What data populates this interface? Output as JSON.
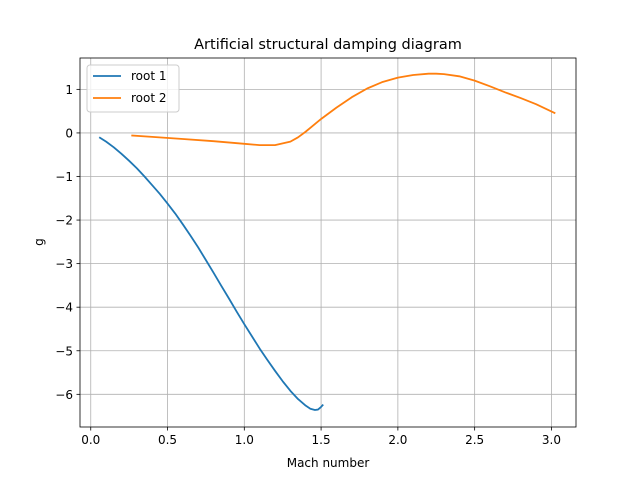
{
  "chart_data": {
    "type": "line",
    "title": "Artificial structural damping diagram",
    "xlabel": "Mach number",
    "ylabel": "g",
    "xlim": [
      -0.07,
      3.16
    ],
    "ylim": [
      -6.75,
      1.72
    ],
    "xticks": [
      0.0,
      0.5,
      1.0,
      1.5,
      2.0,
      2.5,
      3.0
    ],
    "xtick_labels": [
      "0.0",
      "0.5",
      "1.0",
      "1.5",
      "2.0",
      "2.5",
      "3.0"
    ],
    "yticks": [
      -6,
      -5,
      -4,
      -3,
      -2,
      -1,
      0,
      1
    ],
    "ytick_labels": [
      "−6",
      "−5",
      "−4",
      "−3",
      "−2",
      "−1",
      "0",
      "1"
    ],
    "grid": true,
    "legend_position": "top-left",
    "series": [
      {
        "name": "root 1",
        "color": "#1f77b4",
        "x": [
          0.06,
          0.1,
          0.15,
          0.2,
          0.25,
          0.3,
          0.35,
          0.4,
          0.45,
          0.5,
          0.55,
          0.6,
          0.65,
          0.7,
          0.75,
          0.8,
          0.85,
          0.9,
          0.95,
          1.0,
          1.05,
          1.1,
          1.15,
          1.2,
          1.25,
          1.3,
          1.35,
          1.4,
          1.43,
          1.46,
          1.48,
          1.5,
          1.51
        ],
        "y": [
          -0.11,
          -0.2,
          -0.33,
          -0.48,
          -0.64,
          -0.81,
          -1.0,
          -1.2,
          -1.4,
          -1.62,
          -1.85,
          -2.1,
          -2.36,
          -2.63,
          -2.92,
          -3.21,
          -3.51,
          -3.8,
          -4.1,
          -4.39,
          -4.67,
          -4.95,
          -5.21,
          -5.46,
          -5.7,
          -5.92,
          -6.11,
          -6.26,
          -6.33,
          -6.36,
          -6.35,
          -6.29,
          -6.25
        ]
      },
      {
        "name": "root 2",
        "color": "#ff7f0e",
        "x": [
          0.27,
          0.4,
          0.6,
          0.8,
          1.0,
          1.1,
          1.2,
          1.3,
          1.35,
          1.4,
          1.5,
          1.6,
          1.7,
          1.8,
          1.9,
          2.0,
          2.1,
          2.2,
          2.25,
          2.3,
          2.4,
          2.5,
          2.6,
          2.7,
          2.8,
          2.9,
          3.02
        ],
        "y": [
          -0.06,
          -0.09,
          -0.14,
          -0.19,
          -0.25,
          -0.28,
          -0.28,
          -0.2,
          -0.1,
          0.03,
          0.32,
          0.58,
          0.82,
          1.02,
          1.17,
          1.27,
          1.33,
          1.36,
          1.36,
          1.35,
          1.3,
          1.2,
          1.07,
          0.93,
          0.8,
          0.66,
          0.46
        ]
      }
    ]
  }
}
